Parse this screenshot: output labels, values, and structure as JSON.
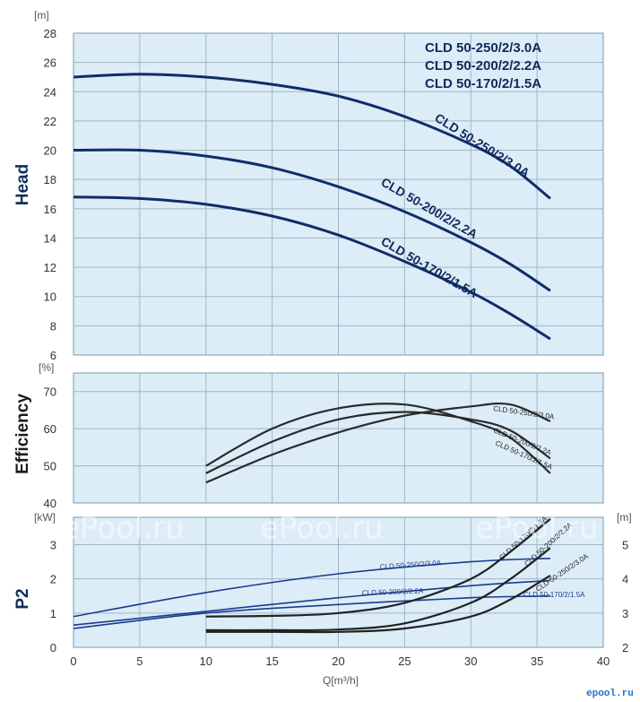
{
  "colors": {
    "panel_bg": "#dcedf8",
    "grid": "#9fb6c6",
    "head_curve": "#102c6a",
    "efficiency_curve": "#2a2a2a",
    "p2_curve": "#222222",
    "npsh_curve": "#1b3a8c"
  },
  "watermark": "ePool.ru",
  "logo_text": "epool.ru",
  "chart_data": [
    {
      "type": "line",
      "panel": "head",
      "ylabel": "Head",
      "yunit": "[m]",
      "ylim": [
        6,
        28
      ],
      "yticks": [
        "6",
        "8",
        "10",
        "12",
        "14",
        "16",
        "18",
        "20",
        "22",
        "24",
        "26",
        "28"
      ],
      "xlim": [
        0,
        40
      ],
      "grid": true,
      "legend_position": "top-right",
      "legend": [
        "CLD 50-250/2/3.0A",
        "CLD 50-200/2/2.2A",
        "CLD 50-170/2/1.5A"
      ],
      "series": [
        {
          "name": "CLD 50-250/2/3.0A",
          "x": [
            0,
            5,
            10,
            15,
            20,
            25,
            30,
            33,
            36
          ],
          "y": [
            25.0,
            25.2,
            25.0,
            24.5,
            23.7,
            22.3,
            20.4,
            18.9,
            16.7
          ]
        },
        {
          "name": "CLD 50-200/2/2.2A",
          "x": [
            0,
            5,
            10,
            15,
            20,
            25,
            30,
            33,
            36
          ],
          "y": [
            20.0,
            20.0,
            19.6,
            18.8,
            17.5,
            15.8,
            13.7,
            12.2,
            10.4
          ]
        },
        {
          "name": "CLD 50-170/2/1.5A",
          "x": [
            0,
            5,
            10,
            15,
            20,
            25,
            30,
            33,
            36
          ],
          "y": [
            16.8,
            16.7,
            16.3,
            15.5,
            14.2,
            12.4,
            10.3,
            8.8,
            7.1
          ]
        }
      ]
    },
    {
      "type": "line",
      "panel": "efficiency",
      "ylabel": "Efficiency",
      "yunit": "[%]",
      "ylim": [
        40,
        75
      ],
      "yticks": [
        "40",
        "50",
        "60",
        "70"
      ],
      "xlim": [
        0,
        40
      ],
      "grid": true,
      "series": [
        {
          "name": "CLD 50-250/2/3.0A",
          "x": [
            10,
            15,
            20,
            25,
            30,
            33,
            36
          ],
          "y": [
            45.5,
            53,
            59,
            63.5,
            66,
            66.5,
            62
          ]
        },
        {
          "name": "CLD 50-200/2/2.2A",
          "x": [
            10,
            15,
            20,
            25,
            30,
            33,
            36
          ],
          "y": [
            48,
            56.5,
            62.5,
            64.5,
            62.5,
            59.5,
            52
          ]
        },
        {
          "name": "CLD 50-170/2/1.5A",
          "x": [
            10,
            15,
            20,
            25,
            30,
            33,
            36
          ],
          "y": [
            50,
            60,
            65.5,
            66.5,
            62,
            57.5,
            48
          ]
        }
      ]
    },
    {
      "type": "line",
      "panel": "p2",
      "ylabel": "P2",
      "yunit": "[kW]",
      "ylim": [
        0,
        3.8
      ],
      "yticks": [
        "0",
        "1",
        "2",
        "3"
      ],
      "y2unit": "[m]",
      "y2lim": [
        2,
        5.8
      ],
      "y2ticks": [
        "2",
        "3",
        "4",
        "5"
      ],
      "xlabel": "Q[m³/h]",
      "xlim": [
        0,
        40
      ],
      "xticks": [
        "0",
        "5",
        "10",
        "15",
        "20",
        "25",
        "30",
        "35",
        "40"
      ],
      "grid": true,
      "series": [
        {
          "name": "CLD 50-250/2/3.0A",
          "axis": "kW",
          "x": [
            0,
            10,
            20,
            30,
            36
          ],
          "y": [
            0.9,
            1.6,
            2.15,
            2.5,
            2.6
          ]
        },
        {
          "name": "CLD 50-200/2/2.2A",
          "axis": "kW",
          "x": [
            0,
            10,
            20,
            30,
            36
          ],
          "y": [
            0.65,
            1.05,
            1.45,
            1.8,
            1.95
          ]
        },
        {
          "name": "CLD 50-170/2/1.5A",
          "axis": "kW",
          "x": [
            0,
            10,
            20,
            30,
            36
          ],
          "y": [
            0.55,
            1.0,
            1.25,
            1.45,
            1.5
          ]
        },
        {
          "name": "CLD 50-170/2/1.5A",
          "axis": "m",
          "x": [
            10,
            15,
            20,
            25,
            30,
            33,
            36
          ],
          "y": [
            2.9,
            2.92,
            3.0,
            3.3,
            4.0,
            4.8,
            5.75
          ]
        },
        {
          "name": "CLD 50-200/2/2.2A",
          "axis": "m",
          "x": [
            10,
            15,
            20,
            25,
            30,
            33,
            36
          ],
          "y": [
            2.5,
            2.5,
            2.52,
            2.7,
            3.3,
            4.0,
            4.9
          ]
        },
        {
          "name": "CLD 50-250/2/3.0A",
          "axis": "m",
          "x": [
            10,
            15,
            20,
            25,
            30,
            33,
            36
          ],
          "y": [
            2.45,
            2.45,
            2.45,
            2.55,
            2.9,
            3.4,
            4.1
          ]
        }
      ]
    }
  ]
}
